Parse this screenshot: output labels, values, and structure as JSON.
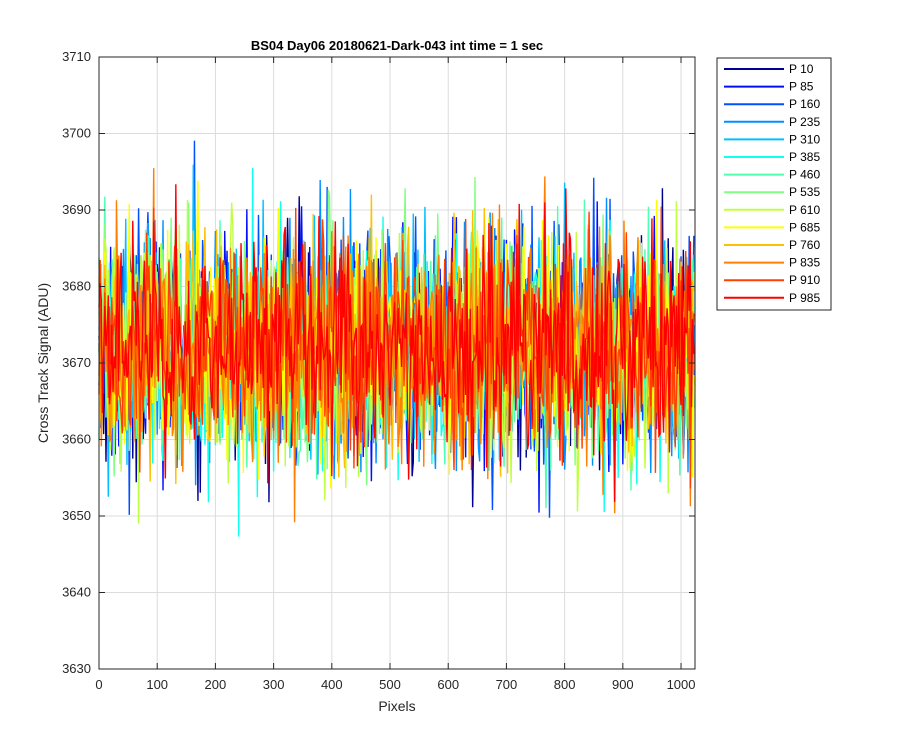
{
  "chart_data": {
    "type": "line",
    "title": "BS04 Day06 20180621-Dark-043 int time = 1 sec",
    "xlabel": "Pixels",
    "ylabel": "Cross Track Signal (ADU)",
    "xlim": [
      0,
      1024
    ],
    "ylim": [
      3630,
      3710
    ],
    "xticks": [
      0,
      100,
      200,
      300,
      400,
      500,
      600,
      700,
      800,
      900,
      1000
    ],
    "yticks": [
      3630,
      3640,
      3650,
      3660,
      3670,
      3680,
      3690,
      3700,
      3710
    ],
    "grid": true,
    "legend_position": "outside-top-right",
    "noise_summary": {
      "mean": 3672,
      "spread_sd": 7
    },
    "series": [
      {
        "name": "P 10",
        "color": "#00008f",
        "min": 3649,
        "max": 3703
      },
      {
        "name": "P 85",
        "color": "#0010ff",
        "min": 3650,
        "max": 3696
      },
      {
        "name": "P 160",
        "color": "#0050ff",
        "min": 3640,
        "max": 3701
      },
      {
        "name": "P 235",
        "color": "#0090ff",
        "min": 3647,
        "max": 3695
      },
      {
        "name": "P 310",
        "color": "#00c0ff",
        "min": 3637,
        "max": 3696
      },
      {
        "name": "P 385",
        "color": "#10ffef",
        "min": 3643,
        "max": 3697
      },
      {
        "name": "P 460",
        "color": "#50ffaf",
        "min": 3641,
        "max": 3692
      },
      {
        "name": "P 535",
        "color": "#80ff80",
        "min": 3648,
        "max": 3703
      },
      {
        "name": "P 610",
        "color": "#c0ff40",
        "min": 3645,
        "max": 3699
      },
      {
        "name": "P 685",
        "color": "#ffff00",
        "min": 3649,
        "max": 3694
      },
      {
        "name": "P 760",
        "color": "#ffc000",
        "min": 3646,
        "max": 3697
      },
      {
        "name": "P 835",
        "color": "#ff8000",
        "min": 3648,
        "max": 3696
      },
      {
        "name": "P 910",
        "color": "#ff4000",
        "min": 3646,
        "max": 3697
      },
      {
        "name": "P 985",
        "color": "#ff0000",
        "min": 3645,
        "max": 3702
      }
    ]
  }
}
